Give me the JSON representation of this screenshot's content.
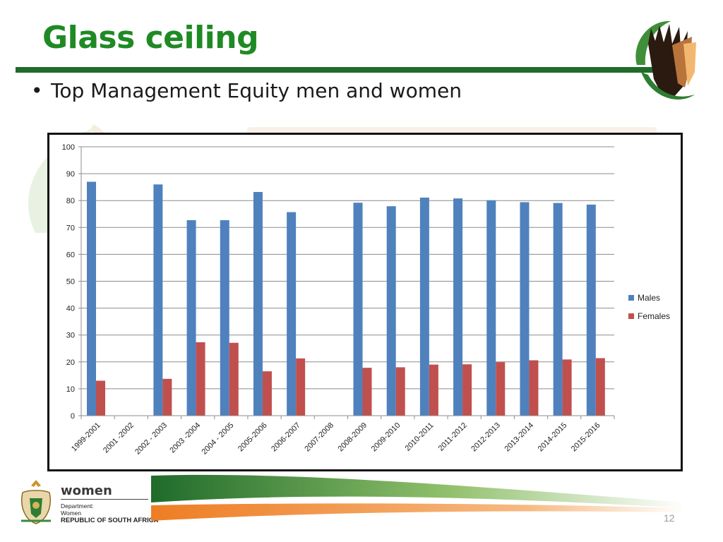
{
  "slide": {
    "title": "Glass ceiling",
    "bullet": "Top Management Equity men and women",
    "page_number": "12"
  },
  "footer": {
    "department_name": "women",
    "department_label": "Department:",
    "department_line": "Women",
    "republic": "REPUBLIC OF SOUTH AFRICA"
  },
  "colors": {
    "title": "#1f8a24",
    "rule": "#1f6b2a",
    "males": "#4f81bd",
    "females": "#c0504d",
    "swoosh_green": "#2e7d32",
    "swoosh_orange": "#ee7d23"
  },
  "chart_data": {
    "type": "bar",
    "categories": [
      "1999-2001",
      "2001 -2002",
      "2002 - 2003",
      "2003 -2004",
      "2004 - 2005",
      "2005-2006",
      "2006-2007",
      "2007-2008",
      "2008-2009",
      "2009-2010",
      "2010-2011",
      "2011-2012",
      "2012-2013",
      "2013-2014",
      "2014-2015",
      "2015-2016"
    ],
    "series": [
      {
        "name": "Males",
        "color": "#4f81bd",
        "values": [
          87,
          null,
          86,
          72.7,
          72.7,
          83.2,
          75.7,
          null,
          79.2,
          77.9,
          81.1,
          80.8,
          80.1,
          79.4,
          79.1,
          78.5
        ]
      },
      {
        "name": "Females",
        "color": "#c0504d",
        "values": [
          13,
          null,
          13.7,
          27.3,
          27.1,
          16.5,
          21.3,
          null,
          17.8,
          18,
          19,
          19.1,
          19.9,
          20.6,
          20.9,
          21.4
        ]
      }
    ],
    "yticks": [
      "0",
      "10",
      "20",
      "30",
      "40",
      "50",
      "60",
      "70",
      "80",
      "90",
      "100"
    ],
    "ylim": [
      0,
      100
    ],
    "grid": true,
    "legend_position": "right"
  }
}
